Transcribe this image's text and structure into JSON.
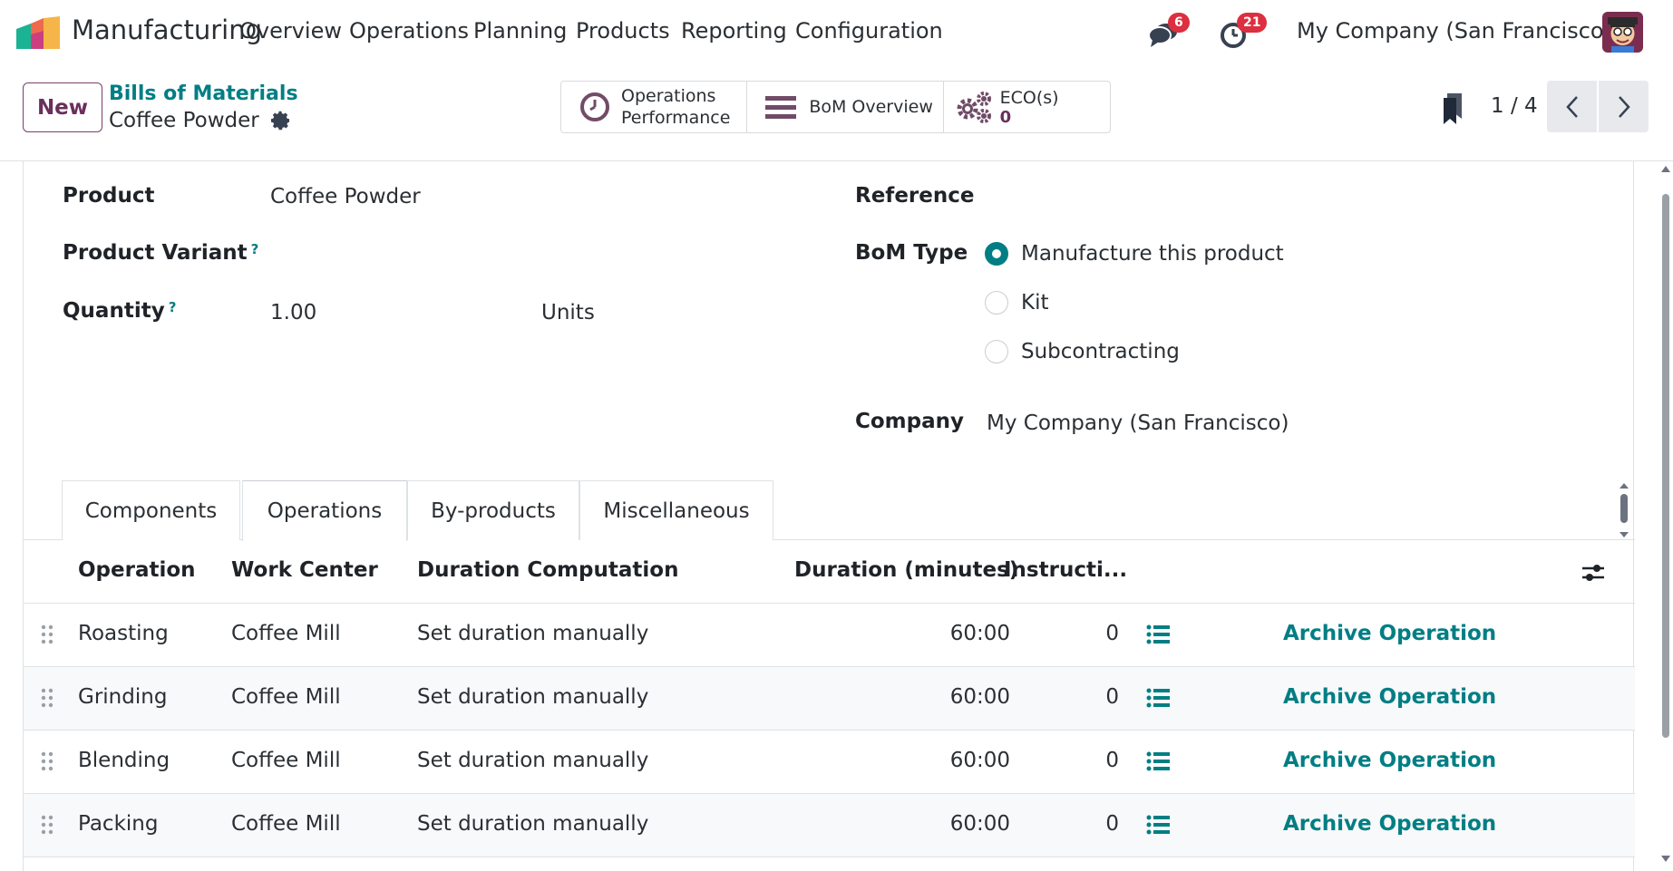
{
  "nav": {
    "app_name": "Manufacturing",
    "menu": [
      "Overview",
      "Operations",
      "Planning",
      "Products",
      "Reporting",
      "Configuration"
    ],
    "messages_count": "6",
    "activities_count": "21",
    "company": "My Company (San Francisco)"
  },
  "control": {
    "new_label": "New",
    "breadcrumb_parent": "Bills of Materials",
    "breadcrumb_current": "Coffee Powder",
    "smart_buttons": {
      "ops_perf_line1": "Operations",
      "ops_perf_line2": "Performance",
      "bom_overview": "BoM Overview",
      "eco_label": "ECO(s)",
      "eco_count": "0"
    },
    "pager": "1 / 4"
  },
  "form": {
    "product_label": "Product",
    "product_value": "Coffee Powder",
    "variant_label": "Product Variant",
    "quantity_label": "Quantity",
    "quantity_value": "1.00",
    "uom_value": "Units",
    "help_mark": "?",
    "reference_label": "Reference",
    "bom_type_label": "BoM Type",
    "bom_types": [
      "Manufacture this product",
      "Kit",
      "Subcontracting"
    ],
    "bom_type_selected": "Manufacture this product",
    "company_label": "Company",
    "company_value": "My Company (San Francisco)"
  },
  "tabs": [
    "Components",
    "Operations",
    "By-products",
    "Miscellaneous"
  ],
  "active_tab": "Operations",
  "table": {
    "headers": {
      "operation": "Operation",
      "work_center": "Work Center",
      "duration_computation": "Duration Computation",
      "duration_minutes": "Duration (minutes)",
      "instructions": "Instructi..."
    },
    "rows": [
      {
        "operation": "Roasting",
        "work_center": "Coffee Mill",
        "computation": "Set duration manually",
        "duration": "60:00",
        "instructions": "0",
        "action": "Archive Operation"
      },
      {
        "operation": "Grinding",
        "work_center": "Coffee Mill",
        "computation": "Set duration manually",
        "duration": "60:00",
        "instructions": "0",
        "action": "Archive Operation"
      },
      {
        "operation": "Blending",
        "work_center": "Coffee Mill",
        "computation": "Set duration manually",
        "duration": "60:00",
        "instructions": "0",
        "action": "Archive Operation"
      },
      {
        "operation": "Packing",
        "work_center": "Coffee Mill",
        "computation": "Set duration manually",
        "duration": "60:00",
        "instructions": "0",
        "action": "Archive Operation"
      }
    ]
  },
  "colors": {
    "brand_purple": "#714b67",
    "accent_teal": "#017e84",
    "badge_red": "#dc2f3f"
  },
  "icons": [
    "manufacturing-logo-icon",
    "chat-icon",
    "activity-clock-icon",
    "clock-icon",
    "menu-lines-icon",
    "gears-icon",
    "bookmark-icon",
    "chevron-left-icon",
    "chevron-right-icon",
    "gear-icon",
    "drag-handle-icon",
    "list-icon",
    "settings-sliders-icon"
  ]
}
